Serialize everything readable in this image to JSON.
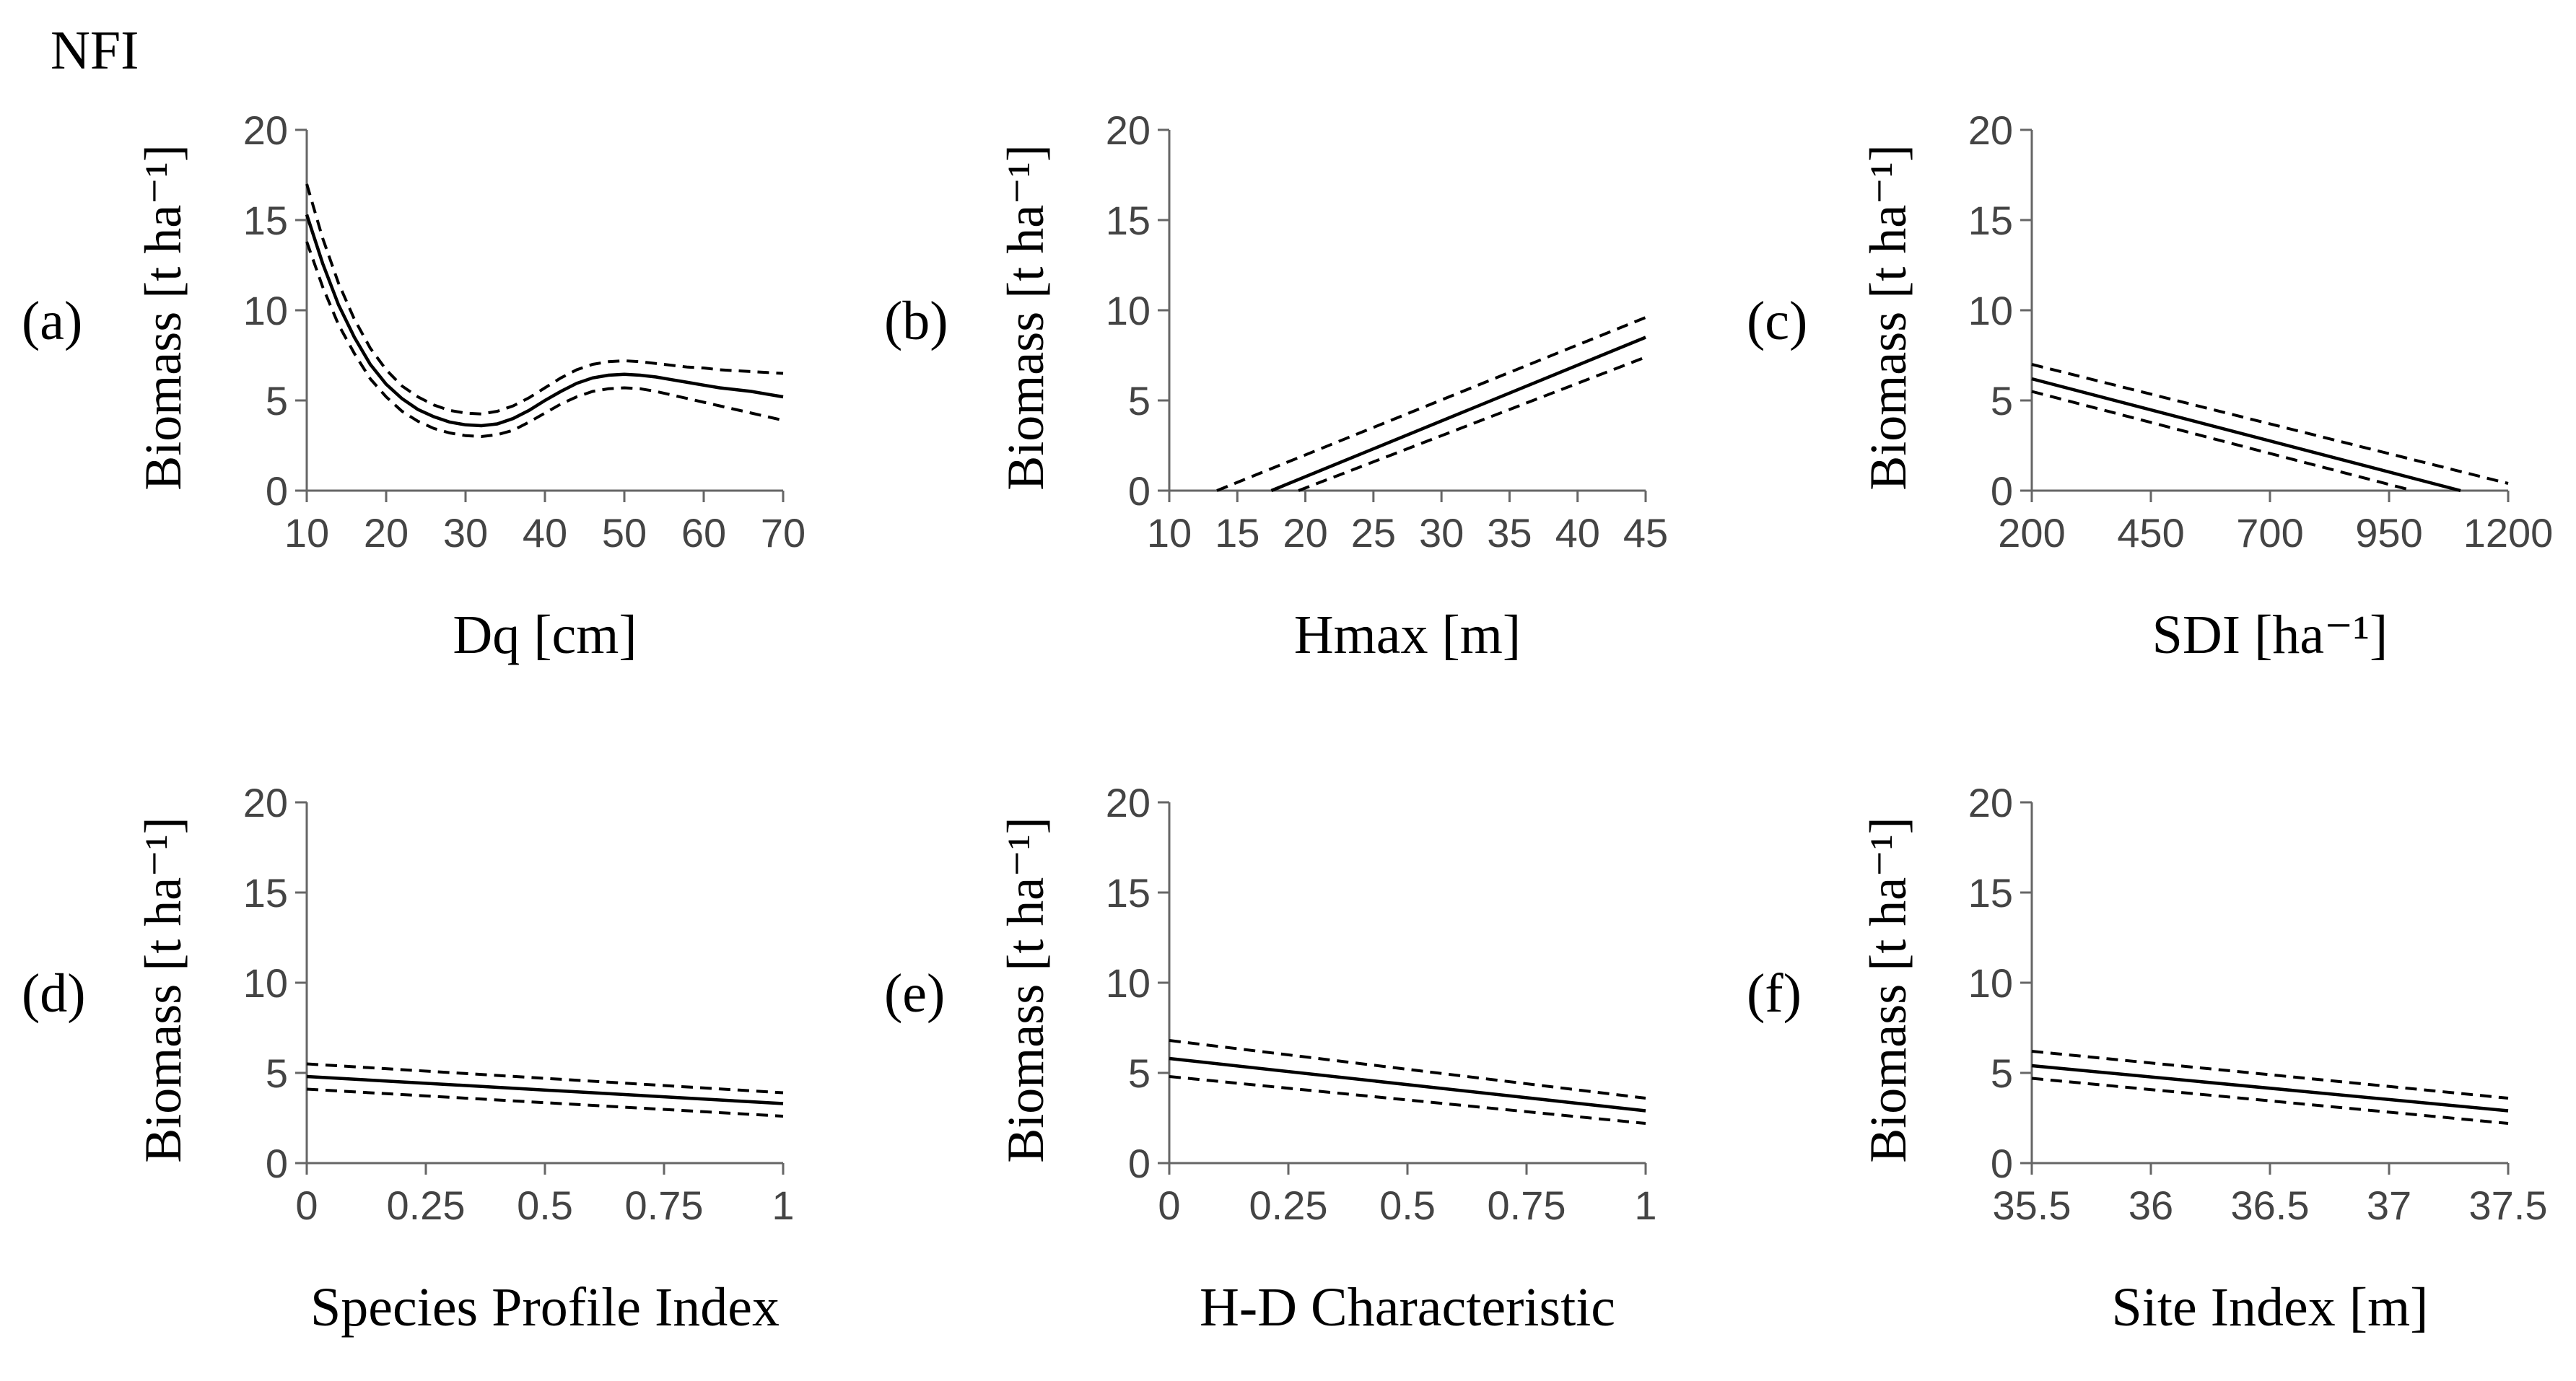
{
  "figure": {
    "title": "NFI"
  },
  "chart_data": [
    {
      "type": "line",
      "panel": "(a)",
      "panel_letter": "a",
      "xlabel": "Dq [cm]",
      "ylabel": "Biomass [t ha⁻¹]",
      "xlim": [
        10,
        70
      ],
      "ylim": [
        0,
        20
      ],
      "xticks": [
        10,
        20,
        30,
        40,
        50,
        60,
        70
      ],
      "xtick_labels": [
        "10",
        "20",
        "30",
        "40",
        "50",
        "60",
        "70"
      ],
      "yticks": [
        0,
        5,
        10,
        15,
        20
      ],
      "ytick_labels": [
        "0",
        "5",
        "10",
        "15",
        "20"
      ],
      "series": [
        {
          "name": "estimate",
          "style": "solid",
          "x": [
            10,
            12,
            14,
            16,
            18,
            20,
            22,
            24,
            26,
            28,
            30,
            32,
            34,
            36,
            38,
            40,
            42,
            44,
            46,
            48,
            50,
            52,
            54,
            56,
            58,
            60,
            62,
            64,
            66,
            68,
            70
          ],
          "y": [
            15.3,
            12.6,
            10.3,
            8.5,
            7.0,
            5.9,
            5.1,
            4.5,
            4.1,
            3.8,
            3.65,
            3.6,
            3.7,
            4.0,
            4.45,
            5.0,
            5.5,
            5.95,
            6.25,
            6.4,
            6.45,
            6.4,
            6.3,
            6.15,
            6.0,
            5.85,
            5.7,
            5.6,
            5.5,
            5.35,
            5.2
          ]
        },
        {
          "name": "upper CI",
          "style": "dashed",
          "x": [
            10,
            12,
            14,
            16,
            18,
            20,
            22,
            24,
            26,
            28,
            30,
            32,
            34,
            36,
            38,
            40,
            42,
            44,
            46,
            48,
            50,
            52,
            54,
            56,
            58,
            60,
            62,
            64,
            66,
            68,
            70
          ],
          "y": [
            17.0,
            14.0,
            11.5,
            9.5,
            7.9,
            6.7,
            5.8,
            5.2,
            4.75,
            4.45,
            4.3,
            4.25,
            4.4,
            4.7,
            5.15,
            5.7,
            6.25,
            6.7,
            7.0,
            7.15,
            7.2,
            7.15,
            7.05,
            6.95,
            6.85,
            6.8,
            6.7,
            6.65,
            6.6,
            6.55,
            6.5
          ]
        },
        {
          "name": "lower CI",
          "style": "dashed",
          "x": [
            10,
            12,
            14,
            16,
            18,
            20,
            22,
            24,
            26,
            28,
            30,
            32,
            34,
            36,
            38,
            40,
            42,
            44,
            46,
            48,
            50,
            52,
            54,
            56,
            58,
            60,
            62,
            64,
            66,
            68,
            70
          ],
          "y": [
            13.8,
            11.3,
            9.2,
            7.6,
            6.2,
            5.2,
            4.4,
            3.85,
            3.45,
            3.2,
            3.05,
            3.0,
            3.1,
            3.35,
            3.8,
            4.3,
            4.8,
            5.2,
            5.5,
            5.65,
            5.7,
            5.65,
            5.5,
            5.3,
            5.1,
            4.9,
            4.7,
            4.5,
            4.3,
            4.1,
            3.9
          ]
        }
      ]
    },
    {
      "type": "line",
      "panel": "(b)",
      "panel_letter": "b",
      "xlabel": "Hmax [m]",
      "ylabel": "Biomass [t ha⁻¹]",
      "xlim": [
        10,
        45
      ],
      "ylim": [
        0,
        20
      ],
      "xticks": [
        10,
        15,
        20,
        25,
        30,
        35,
        40,
        45
      ],
      "xtick_labels": [
        "10",
        "15",
        "20",
        "25",
        "30",
        "35",
        "40",
        "45"
      ],
      "yticks": [
        0,
        5,
        10,
        15,
        20
      ],
      "ytick_labels": [
        "0",
        "5",
        "10",
        "15",
        "20"
      ],
      "series": [
        {
          "name": "estimate",
          "style": "solid",
          "x": [
            17.5,
            45
          ],
          "y": [
            0,
            8.5
          ]
        },
        {
          "name": "upper CI",
          "style": "dashed",
          "x": [
            13.5,
            45
          ],
          "y": [
            0,
            9.6
          ]
        },
        {
          "name": "lower CI",
          "style": "dashed",
          "x": [
            19.5,
            45
          ],
          "y": [
            0,
            7.4
          ]
        }
      ]
    },
    {
      "type": "line",
      "panel": "(c)",
      "panel_letter": "c",
      "xlabel": "SDI [ha⁻¹]",
      "ylabel": "Biomass [t ha⁻¹]",
      "xlim": [
        200,
        1200
      ],
      "ylim": [
        0,
        20
      ],
      "xticks": [
        200,
        450,
        700,
        950,
        1200
      ],
      "xtick_labels": [
        "200",
        "450",
        "700",
        "950",
        "1200"
      ],
      "yticks": [
        0,
        5,
        10,
        15,
        20
      ],
      "ytick_labels": [
        "0",
        "5",
        "10",
        "15",
        "20"
      ],
      "series": [
        {
          "name": "estimate",
          "style": "solid",
          "x": [
            200,
            1100
          ],
          "y": [
            6.2,
            0
          ]
        },
        {
          "name": "upper CI",
          "style": "dashed",
          "x": [
            200,
            1200
          ],
          "y": [
            7.0,
            0.4
          ]
        },
        {
          "name": "lower CI",
          "style": "dashed",
          "x": [
            200,
            1000
          ],
          "y": [
            5.5,
            0
          ]
        }
      ]
    },
    {
      "type": "line",
      "panel": "(d)",
      "panel_letter": "d",
      "xlabel": "Species Profile Index",
      "ylabel": "Biomass [t ha⁻¹]",
      "xlim": [
        0,
        1
      ],
      "ylim": [
        0,
        20
      ],
      "xticks": [
        0,
        0.25,
        0.5,
        0.75,
        1
      ],
      "xtick_labels": [
        "0",
        "0.25",
        "0.5",
        "0.75",
        "1"
      ],
      "yticks": [
        0,
        5,
        10,
        15,
        20
      ],
      "ytick_labels": [
        "0",
        "5",
        "10",
        "15",
        "20"
      ],
      "series": [
        {
          "name": "estimate",
          "style": "solid",
          "x": [
            0,
            1
          ],
          "y": [
            4.8,
            3.3
          ]
        },
        {
          "name": "upper CI",
          "style": "dashed",
          "x": [
            0,
            1
          ],
          "y": [
            5.5,
            3.9
          ]
        },
        {
          "name": "lower CI",
          "style": "dashed",
          "x": [
            0,
            1
          ],
          "y": [
            4.1,
            2.6
          ]
        }
      ]
    },
    {
      "type": "line",
      "panel": "(e)",
      "panel_letter": "e",
      "xlabel": "H-D Characteristic",
      "ylabel": "Biomass [t ha⁻¹]",
      "xlim": [
        0,
        1
      ],
      "ylim": [
        0,
        20
      ],
      "xticks": [
        0,
        0.25,
        0.5,
        0.75,
        1
      ],
      "xtick_labels": [
        "0",
        "0.25",
        "0.5",
        "0.75",
        "1"
      ],
      "yticks": [
        0,
        5,
        10,
        15,
        20
      ],
      "ytick_labels": [
        "0",
        "5",
        "10",
        "15",
        "20"
      ],
      "series": [
        {
          "name": "estimate",
          "style": "solid",
          "x": [
            0,
            1
          ],
          "y": [
            5.8,
            2.9
          ]
        },
        {
          "name": "upper CI",
          "style": "dashed",
          "x": [
            0,
            1
          ],
          "y": [
            6.8,
            3.6
          ]
        },
        {
          "name": "lower CI",
          "style": "dashed",
          "x": [
            0,
            1
          ],
          "y": [
            4.8,
            2.2
          ]
        }
      ]
    },
    {
      "type": "line",
      "panel": "(f)",
      "panel_letter": "f",
      "xlabel": "Site Index [m]",
      "ylabel": "Biomass [t ha⁻¹]",
      "xlim": [
        35.5,
        37.5
      ],
      "ylim": [
        0,
        20
      ],
      "xticks": [
        35.5,
        36,
        36.5,
        37,
        37.5
      ],
      "xtick_labels": [
        "35.5",
        "36",
        "36.5",
        "37",
        "37.5"
      ],
      "yticks": [
        0,
        5,
        10,
        15,
        20
      ],
      "ytick_labels": [
        "0",
        "5",
        "10",
        "15",
        "20"
      ],
      "series": [
        {
          "name": "estimate",
          "style": "solid",
          "x": [
            35.5,
            37.5
          ],
          "y": [
            5.4,
            2.9
          ]
        },
        {
          "name": "upper CI",
          "style": "dashed",
          "x": [
            35.5,
            37.5
          ],
          "y": [
            6.2,
            3.6
          ]
        },
        {
          "name": "lower CI",
          "style": "dashed",
          "x": [
            35.5,
            37.5
          ],
          "y": [
            4.7,
            2.2
          ]
        }
      ]
    }
  ]
}
